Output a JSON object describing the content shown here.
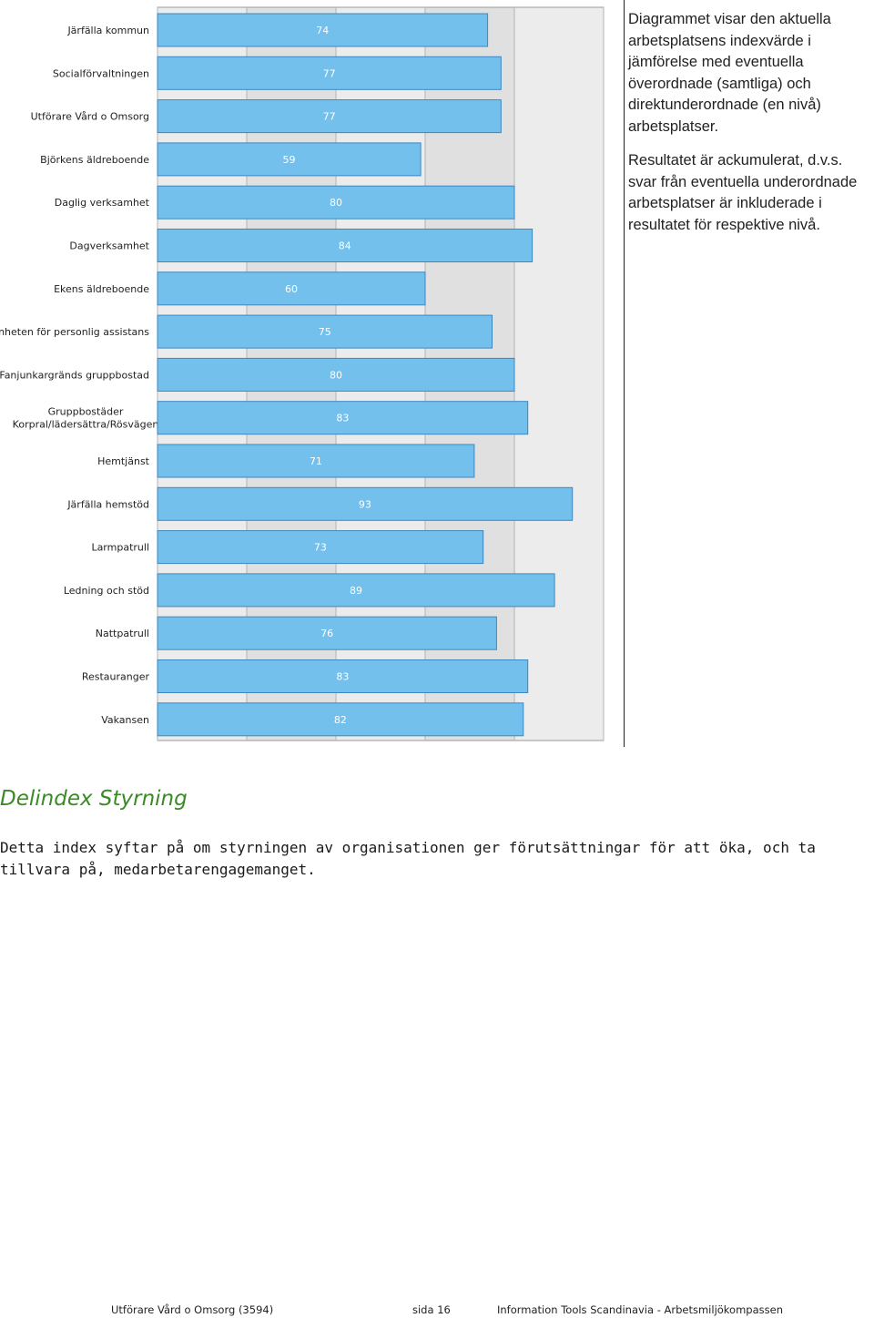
{
  "chart_data": {
    "type": "bar",
    "orientation": "horizontal",
    "categories": [
      "Järfälla kommun",
      "Socialförvaltningen",
      "Utförare Vård o Omsorg",
      "Björkens äldreboende",
      "Daglig verksamhet",
      "Dagverksamhet",
      "Ekens äldreboende",
      "Enheten för personlig assistans",
      "Fanjunkargränds gruppbostad",
      "Gruppbostäder Korpral/lädersättra/Rösvägen",
      "Hemtjänst",
      "Järfälla hemstöd",
      "Larmpatrull",
      "Ledning och stöd",
      "Nattpatrull",
      "Restauranger",
      "Vakansen"
    ],
    "values": [
      74,
      77,
      77,
      59,
      80,
      84,
      60,
      75,
      80,
      83,
      71,
      93,
      73,
      89,
      76,
      83,
      82
    ],
    "xlim": [
      0,
      100
    ],
    "grid": true,
    "bar_color": "#74c0ec",
    "bar_border": "#3d87c0",
    "legend": "none"
  },
  "description": {
    "para1": "Diagrammet visar den aktuella arbetsplatsens indexvärde i jämförelse med eventuella överordnade (samtliga) och direktunderordnade (en nivå) arbetsplatser.",
    "para2": "Resultatet är ackumulerat, d.v.s. svar från eventuella underordnade arbetsplatser är inkluderade i resultatet för respektive nivå."
  },
  "section": {
    "title": "Delindex Styrning",
    "text": "Detta index syftar på om styrningen av organisationen ger förutsättningar för att öka, och ta tillvara på, medarbetarengagemanget."
  },
  "footer": {
    "left": "Utförare Vård o Omsorg (3594)",
    "middle": "sida 16",
    "right": "Information Tools Scandinavia - Arbetsmiljökompassen"
  },
  "colors": {
    "title_green": "#3a8a26",
    "band_light": "#ececec",
    "band_dark": "#e0e0e0"
  }
}
